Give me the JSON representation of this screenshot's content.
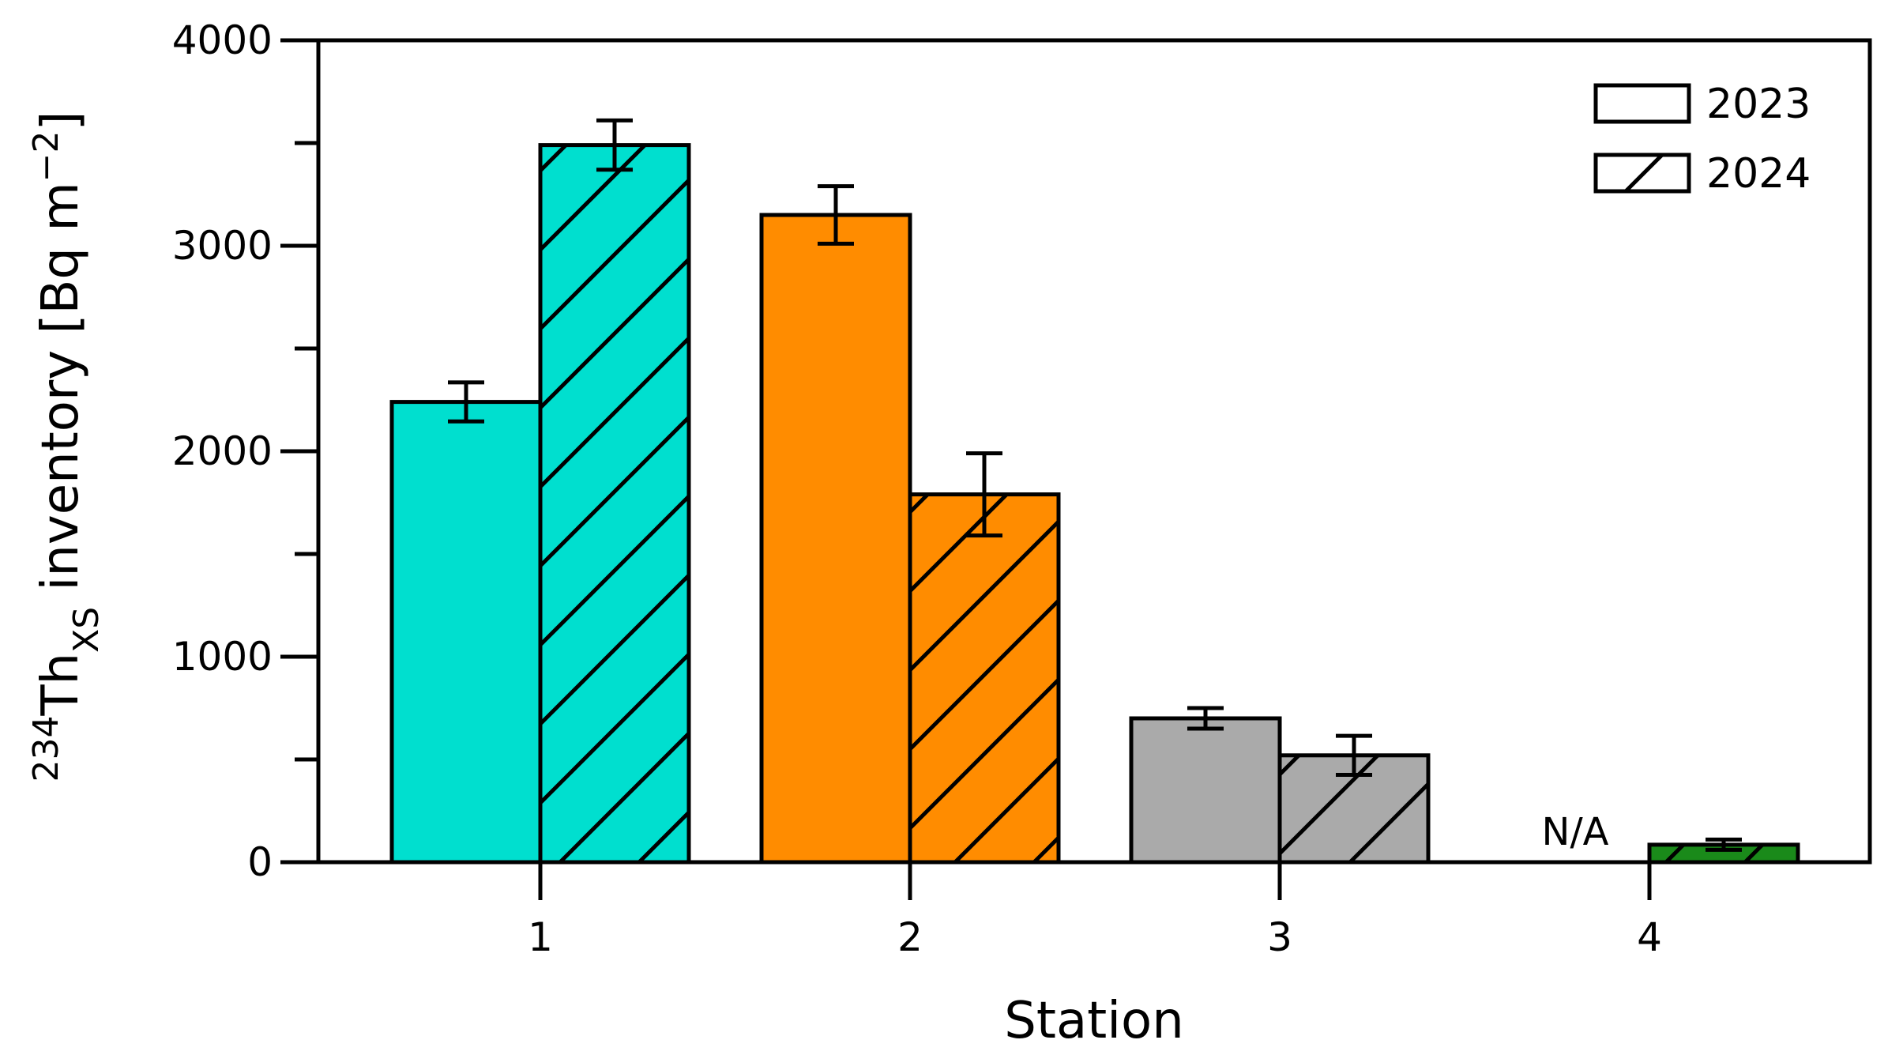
{
  "chart_data": {
    "type": "bar",
    "categories": [
      "1",
      "2",
      "3",
      "4"
    ],
    "xlabel": "Station",
    "ylabel": {
      "superscript": "234",
      "base": "Th",
      "subscript": "XS",
      "text": " inventory [Bq m",
      "unit_exponent": "−2",
      "close": "]"
    },
    "ylim": [
      0,
      4000
    ],
    "yticks": [
      "0",
      "1000",
      "2000",
      "3000",
      "4000"
    ],
    "minor_yticks": [
      500,
      1500,
      2500,
      3500
    ],
    "grid": false,
    "legend_position": "top-right",
    "station_colors": [
      "#00dfcf",
      "#ff8c00",
      "#aaaaaa",
      "#1a8a1a"
    ],
    "series": [
      {
        "name": "2023",
        "hatch": "none",
        "values": [
          2240,
          3150,
          700,
          null
        ],
        "errors": [
          95,
          140,
          50,
          null
        ]
      },
      {
        "name": "2024",
        "hatch": "diagonal",
        "values": [
          3490,
          1790,
          520,
          85
        ],
        "errors": [
          120,
          200,
          95,
          25
        ]
      }
    ],
    "annotations": [
      {
        "text": "N/A",
        "category": "4",
        "series": "2023"
      }
    ]
  }
}
